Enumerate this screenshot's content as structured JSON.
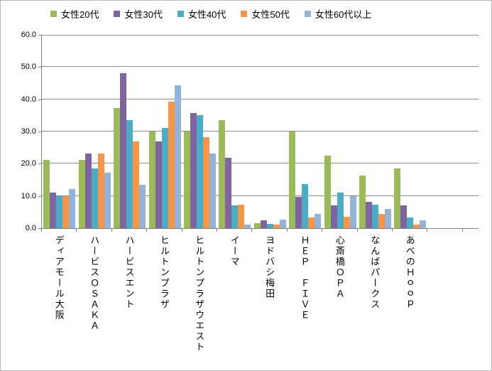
{
  "chart_data": {
    "type": "bar",
    "title": "",
    "xlabel": "",
    "ylabel": "",
    "categories": [
      "ディアモール大阪",
      "ハービスＯＳＡＫＡ",
      "ハービスエント",
      "ヒルトンプラザ",
      "ヒルトンプラザウエスト",
      "イーマ",
      "ヨドバシ梅田",
      "ＨＥＰ　ＦＩＶＥ",
      "心斎橋ＯＰＡ",
      "なんばパークス",
      "あべのＨｏｏｐ"
    ],
    "series": [
      {
        "name": "女性20代",
        "color": "#9BBB59",
        "values": [
          21.2,
          21.2,
          37.3,
          30.0,
          30.0,
          33.5,
          1.5,
          30.0,
          22.4,
          16.3,
          18.6
        ]
      },
      {
        "name": "女性30代",
        "color": "#8064A2",
        "values": [
          11.0,
          23.2,
          48.1,
          27.0,
          35.8,
          21.8,
          2.5,
          9.7,
          7.1,
          8.2,
          7.1
        ]
      },
      {
        "name": "女性40代",
        "color": "#4BACC6",
        "values": [
          9.9,
          18.5,
          33.6,
          31.2,
          35.0,
          7.1,
          1.3,
          13.6,
          11.1,
          7.2,
          3.4
        ]
      },
      {
        "name": "女性50代",
        "color": "#F79646",
        "values": [
          9.9,
          23.1,
          26.9,
          39.3,
          28.3,
          7.2,
          1.1,
          3.4,
          3.5,
          4.4,
          1.1
        ]
      },
      {
        "name": "女性60代以上",
        "color": "#95B3D7",
        "values": [
          12.2,
          17.3,
          13.4,
          44.3,
          23.2,
          1.0,
          2.7,
          4.5,
          9.9,
          5.9,
          2.5
        ]
      }
    ],
    "ylim": [
      0,
      60
    ],
    "ytick_values": [
      0,
      10,
      20,
      30,
      40,
      50,
      60
    ],
    "ytick_labels": [
      "0.0",
      "10.0",
      "20.0",
      "30.0",
      "40.0",
      "50.0",
      "60.0"
    ],
    "grid": true,
    "legend_position": "top",
    "bar_orientation": "vertical",
    "axis_color": "#808080",
    "grid_color": "#8C8C8C",
    "text_color": "#000000",
    "background_color": "#FFFFFF"
  }
}
